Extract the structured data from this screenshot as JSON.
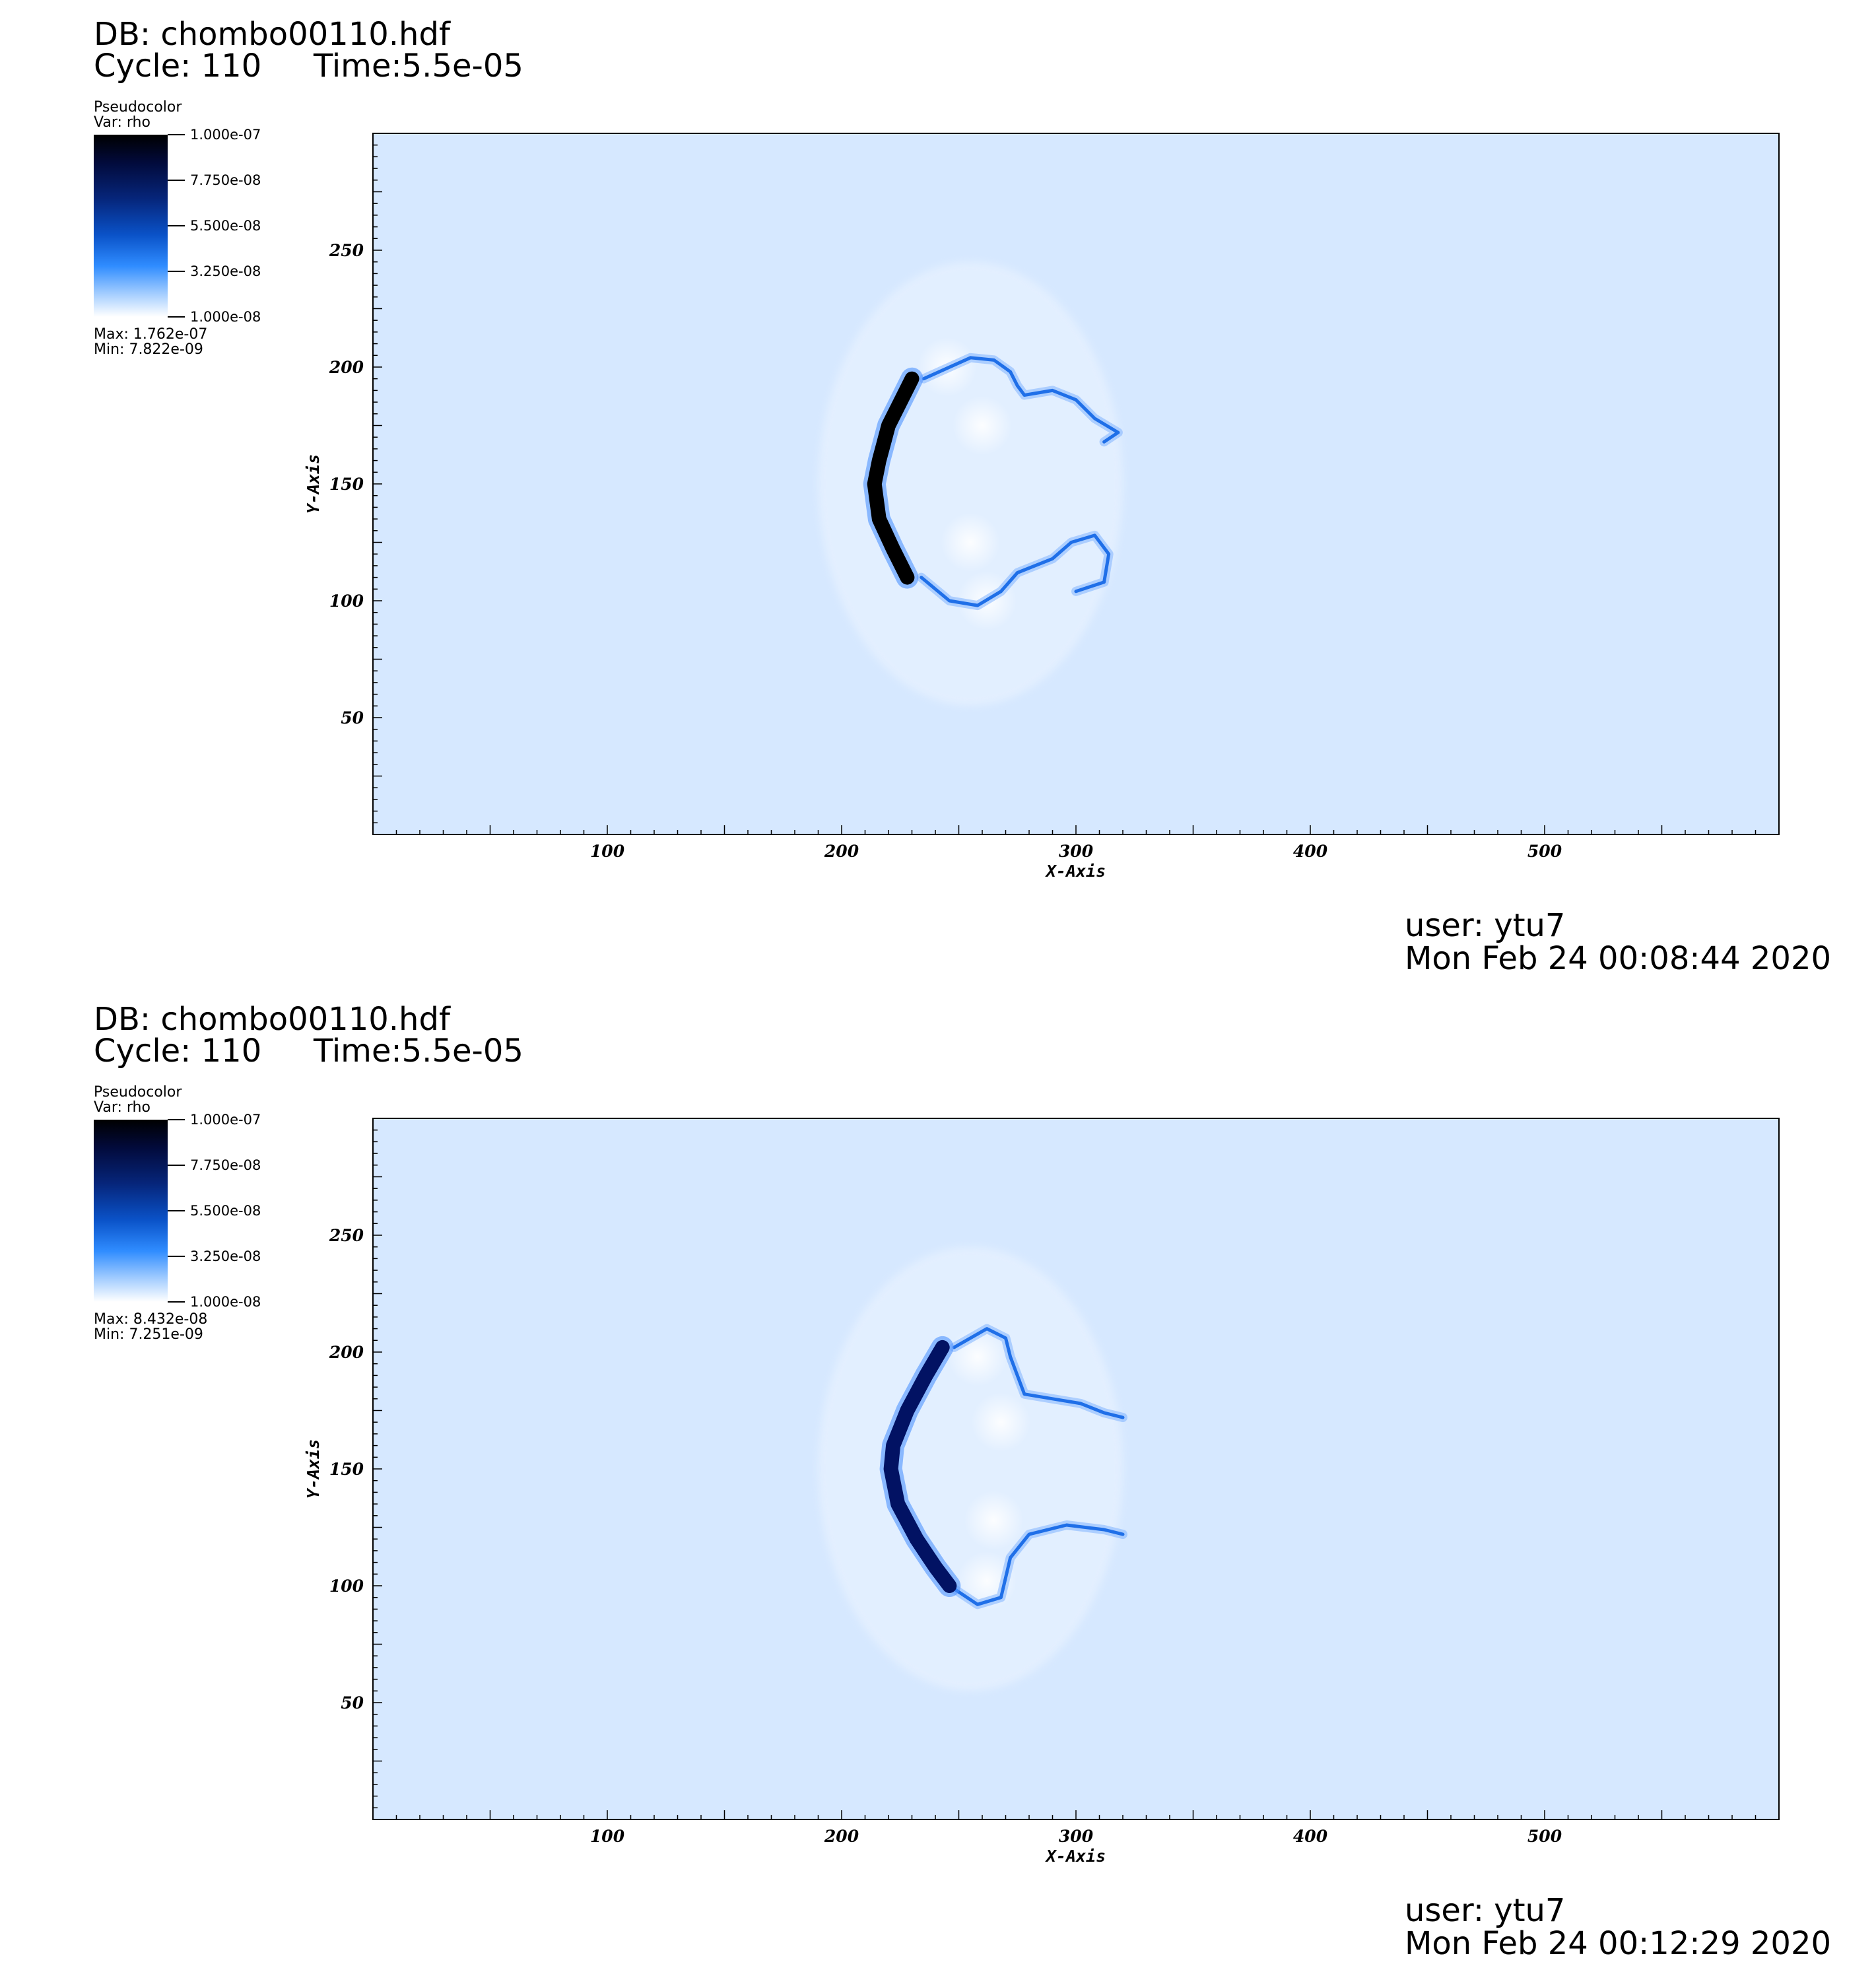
{
  "panels": [
    {
      "db": "DB: chombo00110.hdf",
      "cycle": "Cycle: 110",
      "time": "Time:5.5e-05",
      "legend": {
        "title": "Pseudocolor",
        "var": "Var: rho",
        "ticks": [
          "1.000e-07",
          "7.750e-08",
          "5.500e-08",
          "3.250e-08",
          "1.000e-08"
        ],
        "max": "Max:  1.762e-07",
        "min": "Min:  7.822e-09"
      },
      "user": "user: ytu7",
      "date": "Mon Feb 24 00:08:44 2020"
    },
    {
      "db": "DB: chombo00110.hdf",
      "cycle": "Cycle: 110",
      "time": "Time:5.5e-05",
      "legend": {
        "title": "Pseudocolor",
        "var": "Var: rho",
        "ticks": [
          "1.000e-07",
          "7.750e-08",
          "5.500e-08",
          "3.250e-08",
          "1.000e-08"
        ],
        "max": "Max:  8.432e-08",
        "min": "Min:  7.251e-09"
      },
      "user": "user: ytu7",
      "date": "Mon Feb 24 00:12:29 2020"
    }
  ],
  "chart_data": [
    {
      "type": "heatmap",
      "variable": "rho",
      "colormap": [
        "#ffffff",
        "#2f8cff",
        "#0a52c8",
        "#020a3a",
        "#000000"
      ],
      "background_color": "#d6e8ff",
      "front_color": "#000000",
      "colorbar_range": [
        1e-08,
        1e-07
      ],
      "data_max": 1.762e-07,
      "data_min": 7.822e-09,
      "xlabel": "X-Axis",
      "ylabel": "Y-Axis",
      "xlim": [
        0,
        600
      ],
      "ylim": [
        0,
        300
      ],
      "xticks": [
        100,
        200,
        300,
        400,
        500
      ],
      "yticks": [
        50,
        100,
        150,
        200,
        250
      ],
      "front": [
        [
          230,
          195
        ],
        [
          225,
          185
        ],
        [
          220,
          175
        ],
        [
          216,
          160
        ],
        [
          214,
          150
        ],
        [
          216,
          135
        ],
        [
          222,
          122
        ],
        [
          228,
          110
        ]
      ],
      "vortices": [
        [
          245,
          200
        ],
        [
          260,
          175
        ],
        [
          255,
          125
        ],
        [
          262,
          100
        ]
      ],
      "filaments": [
        [
          [
            235,
            195
          ],
          [
            255,
            204
          ],
          [
            265,
            203
          ],
          [
            272,
            198
          ],
          [
            275,
            192
          ],
          [
            278,
            188
          ],
          [
            290,
            190
          ],
          [
            300,
            186
          ],
          [
            308,
            178
          ],
          [
            318,
            172
          ],
          [
            312,
            168
          ]
        ],
        [
          [
            234,
            110
          ],
          [
            246,
            100
          ],
          [
            258,
            98
          ],
          [
            268,
            104
          ],
          [
            275,
            112
          ],
          [
            290,
            118
          ],
          [
            298,
            125
          ],
          [
            308,
            128
          ],
          [
            314,
            120
          ],
          [
            312,
            108
          ],
          [
            300,
            104
          ]
        ]
      ]
    },
    {
      "type": "heatmap",
      "variable": "rho",
      "colormap": [
        "#ffffff",
        "#2f8cff",
        "#0a52c8",
        "#020a3a",
        "#000000"
      ],
      "background_color": "#d6e8ff",
      "front_color": "#021263",
      "colorbar_range": [
        1e-08,
        1e-07
      ],
      "data_max": 8.432e-08,
      "data_min": 7.251e-09,
      "xlabel": "X-Axis",
      "ylabel": "Y-Axis",
      "xlim": [
        0,
        600
      ],
      "ylim": [
        0,
        300
      ],
      "xticks": [
        100,
        200,
        300,
        400,
        500
      ],
      "yticks": [
        50,
        100,
        150,
        200,
        250
      ],
      "front": [
        [
          243,
          202
        ],
        [
          236,
          190
        ],
        [
          228,
          175
        ],
        [
          222,
          160
        ],
        [
          221,
          150
        ],
        [
          224,
          135
        ],
        [
          232,
          120
        ],
        [
          240,
          108
        ],
        [
          246,
          100
        ]
      ],
      "vortices": [
        [
          258,
          198
        ],
        [
          268,
          170
        ],
        [
          265,
          128
        ],
        [
          262,
          102
        ]
      ],
      "filaments": [
        [
          [
            248,
            202
          ],
          [
            262,
            210
          ],
          [
            270,
            206
          ],
          [
            272,
            198
          ],
          [
            278,
            182
          ],
          [
            290,
            180
          ],
          [
            302,
            178
          ],
          [
            312,
            174
          ],
          [
            320,
            172
          ]
        ],
        [
          [
            246,
            100
          ],
          [
            258,
            92
          ],
          [
            268,
            95
          ],
          [
            272,
            112
          ],
          [
            280,
            122
          ],
          [
            296,
            126
          ],
          [
            312,
            124
          ],
          [
            320,
            122
          ]
        ]
      ]
    }
  ]
}
